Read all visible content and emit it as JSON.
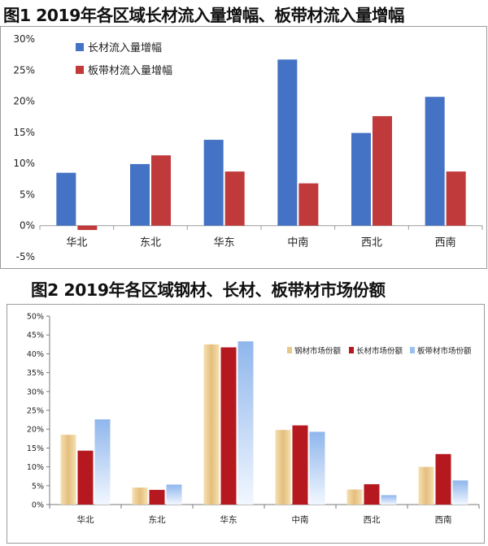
{
  "figure1": {
    "title": "图1 2019年各区域长材流入量增幅、板带材流入量增幅"
  },
  "figure2": {
    "title": "图2  2019年各区域钢材、长材、板带材市场份额"
  },
  "colors": {
    "long_blue": "#4472c4",
    "plate_red": "#c0393b",
    "steel_wheat": "#e8c88a",
    "long_darkred": "#b5191f",
    "plate_lightblue": "#9cc0f0"
  },
  "chart_data": [
    {
      "type": "bar",
      "title": "2019年各区域长材流入量增幅、板带材流入量增幅",
      "categories": [
        "华北",
        "东北",
        "华东",
        "中南",
        "西北",
        "西南"
      ],
      "series": [
        {
          "name": "长材流入量增幅",
          "values": [
            8.5,
            9.9,
            13.8,
            26.7,
            14.9,
            20.7
          ]
        },
        {
          "name": "板带材流入量增幅",
          "values": [
            -0.7,
            11.3,
            8.7,
            6.8,
            17.6,
            8.7
          ]
        }
      ],
      "yticks": [
        "30%",
        "25%",
        "20%",
        "15%",
        "10%",
        "5%",
        "0%",
        "-5%"
      ],
      "ylim": [
        -5,
        30
      ],
      "ystep": 5,
      "legend": "top-left",
      "grid": false
    },
    {
      "type": "bar",
      "title": "2019年各区域钢材、长材、板带材市场份额",
      "categories": [
        "华北",
        "东北",
        "华东",
        "中南",
        "西北",
        "西南"
      ],
      "series": [
        {
          "name": "钢材市场份额",
          "values": [
            18.5,
            4.5,
            42.5,
            19.8,
            4.0,
            10.0
          ]
        },
        {
          "name": "长材市场份额",
          "values": [
            14.3,
            3.9,
            41.7,
            21.0,
            5.4,
            13.4
          ]
        },
        {
          "name": "板带材市场份额",
          "values": [
            22.6,
            5.3,
            43.3,
            19.3,
            2.5,
            6.4
          ]
        }
      ],
      "yticks": [
        "50%",
        "45%",
        "40%",
        "35%",
        "30%",
        "25%",
        "20%",
        "15%",
        "10%",
        "5%",
        "0%"
      ],
      "ylim": [
        0,
        50
      ],
      "ystep": 5,
      "legend": "top-right",
      "grid": false
    }
  ]
}
